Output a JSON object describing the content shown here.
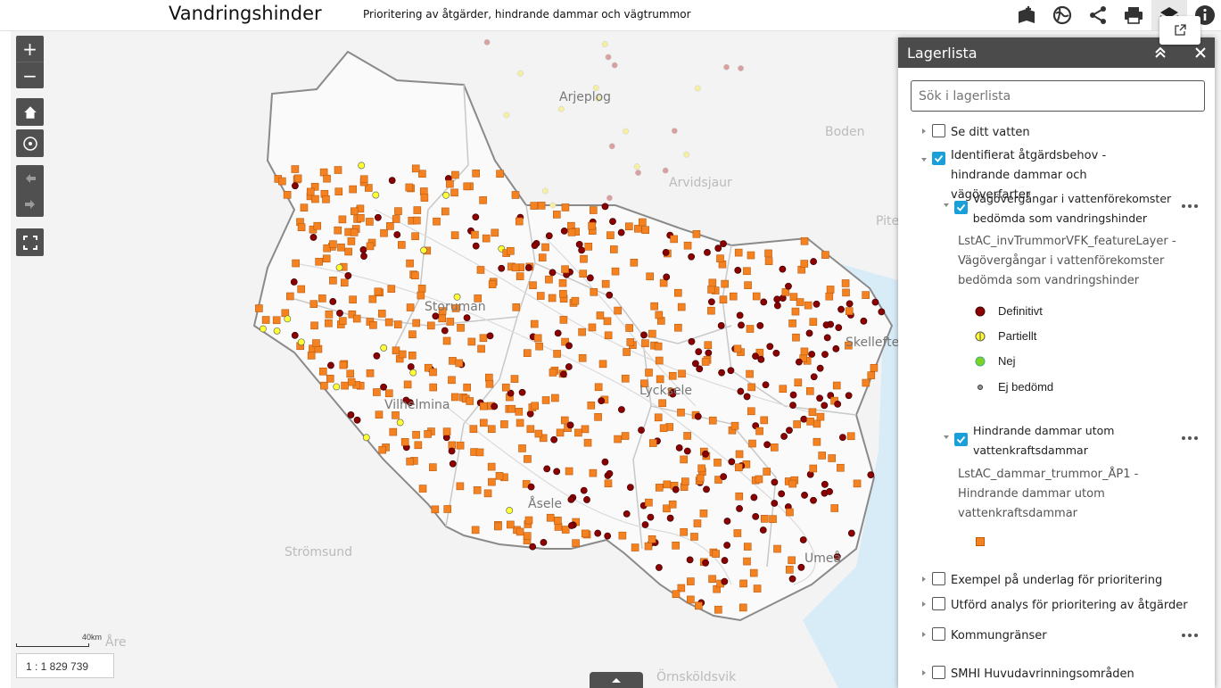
{
  "header": {
    "title": "Vandringshinder",
    "subtitle": "Prioritering av åtgärder, hindrande dammar och vägtrummor"
  },
  "toolbar": {
    "icons": [
      "add-data-icon",
      "basemap-icon",
      "share-icon",
      "print-icon",
      "layers-icon",
      "info-icon"
    ]
  },
  "map": {
    "zoom_in": "+",
    "zoom_out": "−",
    "scale_label": "40km",
    "scale_ratio": "1 : 1 829 739",
    "cities": [
      "Arjeplog",
      "Boden",
      "Arvidsjaur",
      "Pite",
      "Storuman",
      "Skellefte",
      "Lycksele",
      "Vilhelmina",
      "Åsele",
      "Umeå",
      "Strömsund",
      "Åre",
      "Örnsköldsvik"
    ]
  },
  "panel": {
    "title": "Lagerlista",
    "search_placeholder": "Sök i lagerlista",
    "layers": {
      "l1": "Se ditt vatten",
      "l2": "Identifierat åtgärdsbehov - hindrande dammar och vägöverfarter",
      "l2a": "Vägövergångar i vattenförekomster bedömda som vandringshinder",
      "l2a_desc": "LstAC_invTrummorVFK_featureLayer - Vägövergångar i vattenförekomster bedömda som vandringshinder",
      "legend": [
        "Definitivt",
        "Partiellt",
        "Nej",
        "Ej bedömd"
      ],
      "l2b": "Hindrande dammar utom vattenkraftsdammar",
      "l2b_desc": "LstAC_dammar_trummor_ÅP1 - Hindrande dammar utom vattenkraftsdammar",
      "l3": "Exempel på underlag för prioritering",
      "l4": "Utförd analys för prioritering av åtgärder",
      "l5": "Kommungränser",
      "l6": "SMHI Huvudavrinningsområden"
    }
  },
  "colors": {
    "definitivt": "#8b0000",
    "partiellt": "#ffff33",
    "nej": "#7ed321",
    "dam": "#f58220",
    "accent": "#1aa0d8"
  }
}
